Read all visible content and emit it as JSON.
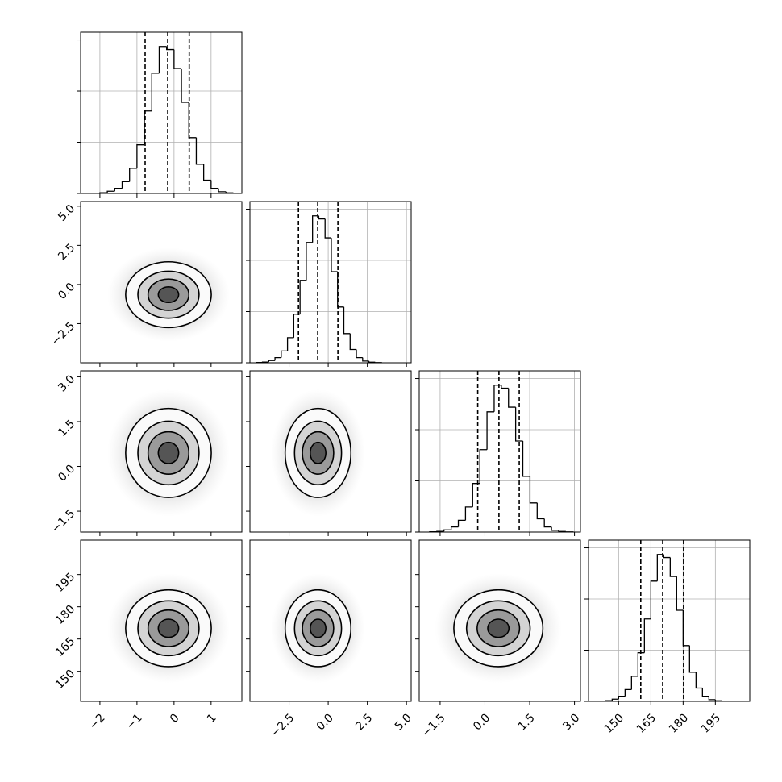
{
  "chart_data": {
    "type": "corner",
    "levels": [
      0.5,
      1.0,
      1.5,
      2.1
    ],
    "hist_ylim": [
      0,
      3150
    ],
    "hist_yticks": [
      0,
      1000,
      2000,
      3000
    ],
    "hist_grid": true,
    "parameters": [
      {
        "lim": [
          -2.52,
          1.83
        ],
        "ticks": [
          {
            "value": -2,
            "label": "−2"
          },
          {
            "value": -1,
            "label": "−1"
          },
          0,
          1
        ],
        "mean": -0.15,
        "sigma": 0.55,
        "quantiles": [
          -0.78,
          -0.17,
          0.41
        ],
        "bins": [
          -2.2,
          -2.0,
          -1.8,
          -1.6,
          -1.4,
          -1.2,
          -1.0,
          -0.8,
          -0.6,
          -0.4,
          -0.2,
          0.0,
          0.2,
          0.4,
          0.6,
          0.8,
          1.0,
          1.2,
          1.4,
          1.6,
          1.8
        ],
        "counts": [
          6,
          14,
          43,
          100,
          230,
          490,
          950,
          1610,
          2350,
          2870,
          2810,
          2440,
          1780,
          1090,
          570,
          260,
          100,
          34,
          11,
          3
        ]
      },
      {
        "lim": [
          -5.0,
          5.3
        ],
        "ticks": [
          {
            "value": -2.5,
            "label": "−2.5"
          },
          {
            "value": 0,
            "label": "0.0"
          },
          {
            "value": 2.5,
            "label": "2.5"
          },
          {
            "value": 5,
            "label": "5.0"
          }
        ],
        "mean": -0.65,
        "sigma": 1.0,
        "quantiles": [
          -1.9,
          -0.67,
          0.62
        ],
        "bins": [
          -4.6,
          -4.2,
          -3.8,
          -3.4,
          -3.0,
          -2.6,
          -2.2,
          -1.8,
          -1.4,
          -1.0,
          -0.6,
          -0.2,
          0.2,
          0.6,
          1.0,
          1.4,
          1.8,
          2.2,
          2.6,
          3.0,
          3.4
        ],
        "counts": [
          6,
          14,
          43,
          100,
          230,
          490,
          950,
          1610,
          2350,
          2870,
          2810,
          2440,
          1780,
          1090,
          570,
          260,
          100,
          34,
          11,
          3
        ]
      },
      {
        "lim": [
          -2.2,
          3.2
        ],
        "ticks": [
          {
            "value": -1.5,
            "label": "−1.5"
          },
          {
            "value": 0,
            "label": "0.0"
          },
          {
            "value": 1.5,
            "label": "1.5"
          },
          {
            "value": 3,
            "label": "3.0"
          }
        ],
        "mean": 0.45,
        "sigma": 0.71,
        "quantiles": [
          -0.24,
          0.47,
          1.15
        ],
        "bins": [
          -1.85,
          -1.61,
          -1.37,
          -1.13,
          -0.89,
          -0.65,
          -0.41,
          -0.17,
          0.07,
          0.31,
          0.55,
          0.79,
          1.03,
          1.27,
          1.51,
          1.75,
          1.99,
          2.23,
          2.47,
          2.71,
          2.95
        ],
        "counts": [
          6,
          14,
          43,
          100,
          230,
          490,
          950,
          1610,
          2350,
          2870,
          2810,
          2440,
          1780,
          1090,
          570,
          260,
          100,
          34,
          11,
          3
        ]
      },
      {
        "lim": [
          136,
          211
        ],
        "ticks": [
          150,
          165,
          180,
          195
        ],
        "mean": 170,
        "sigma": 8.5,
        "quantiles": [
          160.3,
          170.5,
          180.2
        ],
        "bins": [
          141,
          144,
          147,
          150,
          153,
          156,
          159,
          162,
          165,
          168,
          171,
          174,
          177,
          180,
          183,
          186,
          189,
          192,
          195,
          198,
          201
        ],
        "counts": [
          6,
          14,
          43,
          100,
          230,
          490,
          950,
          1610,
          2350,
          2870,
          2810,
          2440,
          1780,
          1090,
          570,
          260,
          100,
          34,
          11,
          3
        ]
      }
    ]
  }
}
